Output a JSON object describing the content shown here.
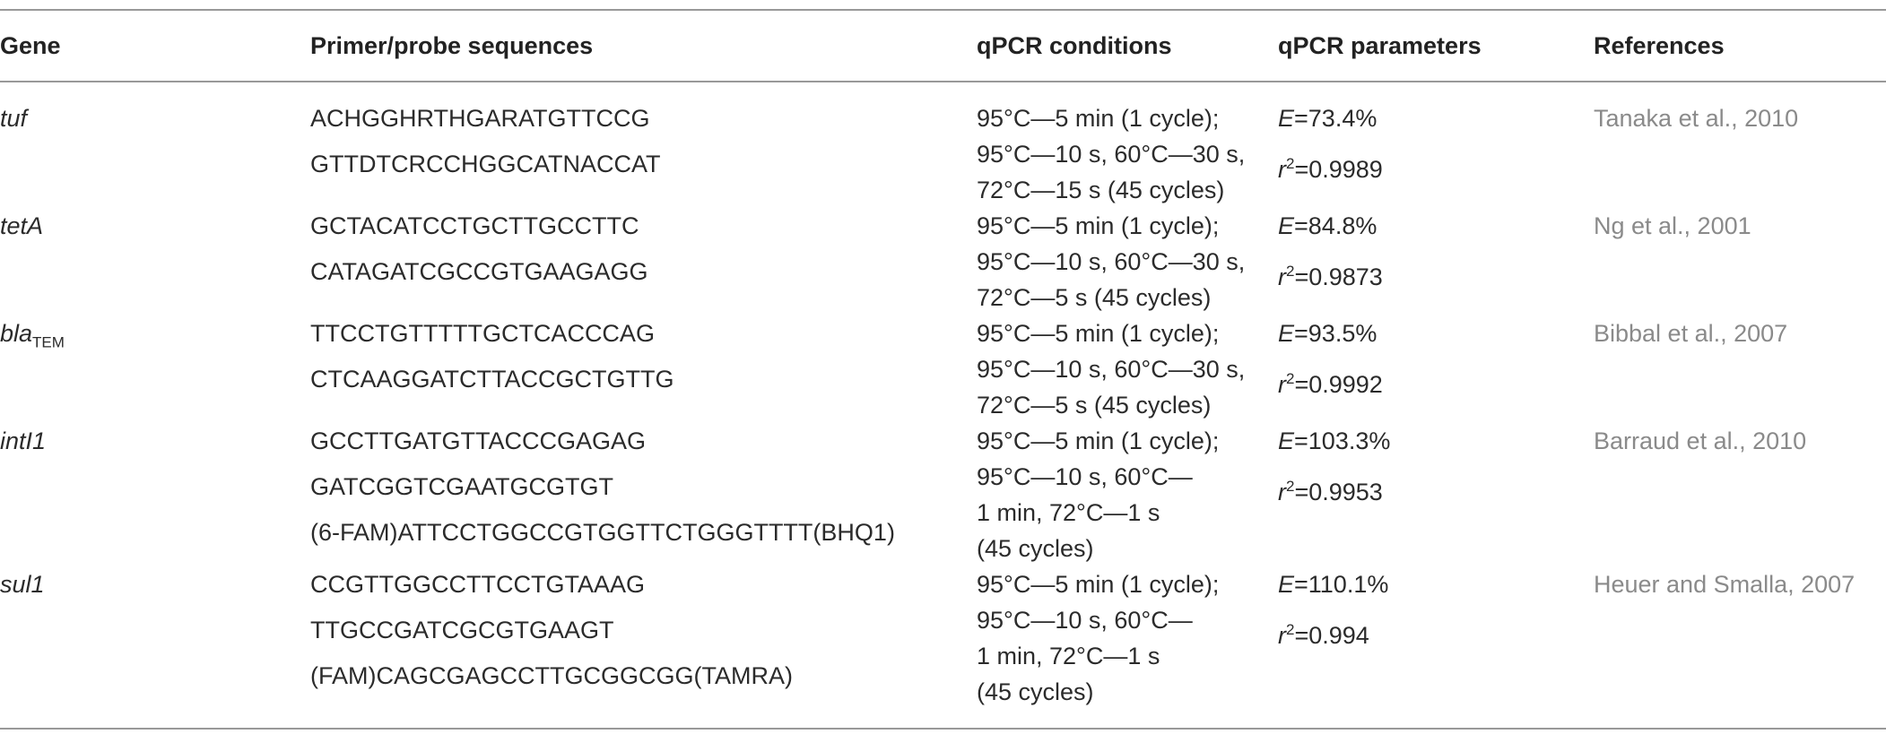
{
  "table": {
    "header": [
      "Gene",
      "Primer/probe sequences",
      "qPCR conditions",
      "qPCR parameters",
      "References"
    ],
    "rows": [
      {
        "gene": "tuf",
        "primers": [
          "ACHGGHRTHGARATGTTCCG",
          "GTTDTCRCCHGGCATNACCAT"
        ],
        "conditions": [
          "95°C—5 min (1 cycle);",
          "95°C—10 s, 60°C—30 s, 72°C—15 s (45 cycles)"
        ],
        "parameters": [
          {
            "symbol": "E",
            "value": "=73.4%"
          },
          {
            "symbol": "r",
            "sup": "2",
            "value": "=0.9989"
          }
        ],
        "reference": "Tanaka et al., 2010"
      },
      {
        "gene": "tetA",
        "primers": [
          "GCTACATCCTGCTTGCCTTC",
          "CATAGATCGCCGTGAAGAGG"
        ],
        "conditions": [
          "95°C—5 min (1 cycle);",
          "95°C—10 s, 60°C—30 s, 72°C—5 s (45 cycles)"
        ],
        "parameters": [
          {
            "symbol": "E",
            "value": "=84.8%"
          },
          {
            "symbol": "r",
            "sup": "2",
            "value": "=0.9873"
          }
        ],
        "reference": "Ng et al., 2001"
      },
      {
        "gene": "bla",
        "gene_sub": "TEM",
        "primers": [
          "TTCCTGTTTTTGCTCACCCAG",
          "CTCAAGGATCTTACCGCTGTTG"
        ],
        "conditions": [
          "95°C—5 min (1 cycle);",
          "95°C—10 s, 60°C—30 s, 72°C—5 s (45 cycles)"
        ],
        "parameters": [
          {
            "symbol": "E",
            "value": "=93.5%"
          },
          {
            "symbol": "r",
            "sup": "2",
            "value": "=0.9992"
          }
        ],
        "reference": "Bibbal et al., 2007"
      },
      {
        "gene": "intI1",
        "primers": [
          "GCCTTGATGTTACCCGAGAG",
          "GATCGGTCGAATGCGTGT",
          "(6-FAM)ATTCCTGGCCGTGGTTCTGGGTTTT(BHQ1)"
        ],
        "conditions": [
          "95°C—5 min (1 cycle);",
          "95°C—10 s, 60°C—1 min, 72°C—1 s (45 cycles)"
        ],
        "parameters": [
          {
            "symbol": "E",
            "value": "=103.3%"
          },
          {
            "symbol": "r",
            "sup": "2",
            "value": "=0.9953"
          }
        ],
        "reference": "Barraud et al., 2010"
      },
      {
        "gene": "sul1",
        "primers": [
          "CCGTTGGCCTTCCTGTAAAG",
          "TTGCCGATCGCGTGAAGT",
          "(FAM)CAGCGAGCCTTGCGGCGG(TAMRA)"
        ],
        "conditions": [
          "95°C—5 min (1 cycle);",
          "95°C—10 s, 60°C—1 min, 72°C—1 s (45 cycles)"
        ],
        "parameters": [
          {
            "symbol": "E",
            "value": "=110.1%"
          },
          {
            "symbol": "r",
            "sup": "2",
            "value": "=0.994"
          }
        ],
        "reference": "Heuer and Smalla, 2007"
      }
    ]
  }
}
